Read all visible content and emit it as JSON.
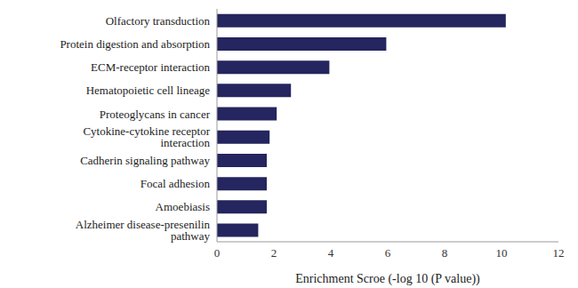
{
  "chart_data": {
    "type": "bar",
    "orientation": "horizontal",
    "x_label": "Enrichment Scroe (-log 10 (P value))",
    "categories": [
      "Olfactory transduction",
      "Protein digestion and absorption",
      "ECM-receptor interaction",
      "Hematopoietic cell lineage",
      "Proteoglycans in cancer",
      "Cytokine-cytokine receptor interaction",
      "Cadherin signaling pathway",
      "Focal adhesion",
      "Amoebiasis",
      "Alzheimer disease-presenilin pathway"
    ],
    "values": [
      10.15,
      5.95,
      3.95,
      2.6,
      2.1,
      1.85,
      1.75,
      1.75,
      1.75,
      1.45
    ],
    "color": "#25255f",
    "xlim": [
      0,
      12
    ],
    "xticks": [
      0,
      2,
      4,
      6,
      8,
      10,
      12
    ],
    "grid": false
  }
}
